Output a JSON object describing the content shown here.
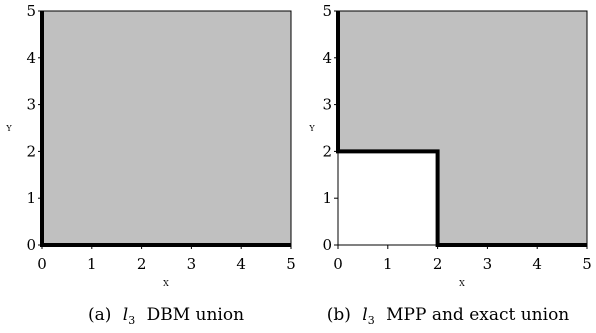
{
  "chart_data": [
    {
      "type": "area",
      "xlabel": "X",
      "ylabel": "Y",
      "xlim": [
        0,
        5
      ],
      "ylim": [
        0,
        5
      ],
      "xticks": [
        "0",
        "1",
        "2",
        "3",
        "4",
        "5"
      ],
      "yticks": [
        "0",
        "1",
        "2",
        "3",
        "4",
        "5"
      ],
      "fill_color": "#c0c0c0",
      "region": [
        [
          0,
          0
        ],
        [
          5,
          0
        ],
        [
          5,
          5
        ],
        [
          0,
          5
        ]
      ],
      "boundary": [
        [
          [
            0,
            5
          ],
          [
            0,
            0
          ],
          [
            5,
            0
          ]
        ]
      ],
      "caption": {
        "label": "(a)",
        "var": "l",
        "sub": "3",
        "text": "DBM union"
      }
    },
    {
      "type": "area",
      "xlabel": "X",
      "ylabel": "Y",
      "xlim": [
        0,
        5
      ],
      "ylim": [
        0,
        5
      ],
      "xticks": [
        "0",
        "1",
        "2",
        "3",
        "4",
        "5"
      ],
      "yticks": [
        "0",
        "1",
        "2",
        "3",
        "4",
        "5"
      ],
      "fill_color": "#c0c0c0",
      "region": [
        [
          0,
          2
        ],
        [
          2,
          2
        ],
        [
          2,
          0
        ],
        [
          5,
          0
        ],
        [
          5,
          5
        ],
        [
          0,
          5
        ]
      ],
      "boundary": [
        [
          [
            0,
            5
          ],
          [
            0,
            2
          ],
          [
            2,
            2
          ],
          [
            2,
            0
          ],
          [
            5,
            0
          ]
        ]
      ],
      "caption": {
        "label": "(b)",
        "var": "l",
        "sub": "3",
        "text": "MPP and exact union"
      }
    }
  ]
}
